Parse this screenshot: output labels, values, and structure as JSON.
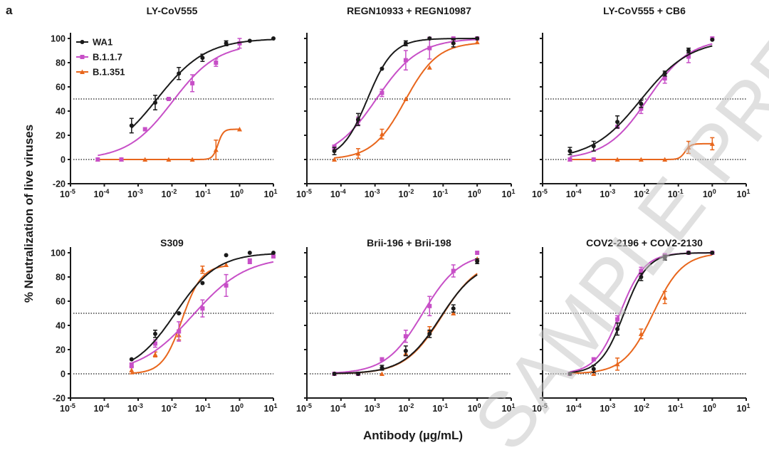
{
  "panel_label": "a",
  "y_axis_label": "% Neutralization of live viruses",
  "x_axis_label": "Antibody (µg/mL)",
  "watermark": "SAMPLE PREVIEW",
  "colors": {
    "WA1": "#1a1a1a",
    "B.1.1.7": "#c74fc7",
    "B.1.351": "#e8661c"
  },
  "chart_data": [
    {
      "type": "scatter",
      "title": "LY-CoV555",
      "xscale": "log",
      "xlim": [
        1e-05,
        10
      ],
      "ylim": [
        -20,
        100
      ],
      "x_tick_exponents": [
        -5,
        -4,
        -3,
        -2,
        -1,
        0,
        1
      ],
      "y_ticks": [
        -20,
        0,
        20,
        40,
        60,
        80,
        100
      ],
      "reference_lines": [
        0,
        50
      ],
      "legend": "top-left",
      "series": [
        {
          "name": "WA1",
          "marker": "circle",
          "x": [
            0.00064,
            0.0032,
            0.016,
            0.08,
            0.4,
            2,
            10
          ],
          "y": [
            28,
            47,
            71,
            84,
            96,
            98,
            100
          ],
          "err": [
            6,
            6,
            5,
            3,
            2,
            0,
            0
          ]
        },
        {
          "name": "B.1.1.7",
          "marker": "square",
          "x": [
            6.4e-05,
            0.00032,
            0.0016,
            0.008,
            0.04,
            0.2,
            1
          ],
          "y": [
            0,
            0,
            25,
            50,
            63,
            80,
            96
          ],
          "err": [
            0,
            0,
            0,
            0,
            7,
            3,
            4
          ]
        },
        {
          "name": "B.1.351",
          "marker": "triangle",
          "x": [
            6.4e-05,
            0.00032,
            0.0016,
            0.008,
            0.04,
            0.2,
            1
          ],
          "y": [
            0,
            0,
            0,
            0,
            0,
            8,
            25
          ],
          "err": [
            0,
            0,
            0,
            0,
            0,
            8,
            0
          ]
        }
      ]
    },
    {
      "type": "scatter",
      "title": "REGN10933 + REGN10987",
      "xscale": "log",
      "xlim": [
        1e-05,
        10
      ],
      "ylim": [
        -20,
        100
      ],
      "x_tick_exponents": [
        -5,
        -4,
        -3,
        -2,
        -1,
        0,
        1
      ],
      "y_ticks": [
        -20,
        0,
        20,
        40,
        60,
        80,
        100
      ],
      "reference_lines": [
        0,
        50
      ],
      "series": [
        {
          "name": "WA1",
          "marker": "circle",
          "x": [
            6.4e-05,
            0.00032,
            0.0016,
            0.008,
            0.04,
            0.2,
            1
          ],
          "y": [
            7,
            33,
            75,
            96,
            100,
            96,
            100
          ],
          "err": [
            3,
            5,
            0,
            2,
            0,
            3,
            0
          ]
        },
        {
          "name": "B.1.1.7",
          "marker": "square",
          "x": [
            6.4e-05,
            0.00032,
            0.0016,
            0.008,
            0.04,
            0.2,
            1
          ],
          "y": [
            10,
            32,
            55,
            82,
            92,
            100,
            100
          ],
          "err": [
            2,
            3,
            3,
            8,
            9,
            0,
            0
          ]
        },
        {
          "name": "B.1.351",
          "marker": "triangle",
          "x": [
            6.4e-05,
            0.00032,
            0.0016,
            0.008,
            0.04,
            0.2,
            1
          ],
          "y": [
            0,
            5,
            21,
            50,
            76,
            97,
            97
          ],
          "err": [
            0,
            4,
            4,
            0,
            0,
            0,
            0
          ]
        }
      ]
    },
    {
      "type": "scatter",
      "title": "LY-CoV555 + CB6",
      "xscale": "log",
      "xlim": [
        1e-05,
        10
      ],
      "ylim": [
        -20,
        100
      ],
      "x_tick_exponents": [
        -5,
        -4,
        -3,
        -2,
        -1,
        0,
        1
      ],
      "y_ticks": [
        -20,
        0,
        20,
        40,
        60,
        80,
        100
      ],
      "reference_lines": [
        0,
        50
      ],
      "series": [
        {
          "name": "WA1",
          "marker": "circle",
          "x": [
            6.4e-05,
            0.00032,
            0.0016,
            0.008,
            0.04,
            0.2,
            1
          ],
          "y": [
            7,
            11,
            31,
            46,
            71,
            90,
            99
          ],
          "err": [
            3,
            4,
            5,
            3,
            2,
            2,
            0
          ]
        },
        {
          "name": "B.1.1.7",
          "marker": "square",
          "x": [
            6.4e-05,
            0.00032,
            0.0016,
            0.008,
            0.04,
            0.2,
            1
          ],
          "y": [
            0,
            0,
            27,
            42,
            67,
            85,
            100
          ],
          "err": [
            0,
            0,
            0,
            4,
            4,
            5,
            0
          ]
        },
        {
          "name": "B.1.351",
          "marker": "triangle",
          "x": [
            6.4e-05,
            0.00032,
            0.0016,
            0.008,
            0.04,
            0.2,
            1
          ],
          "y": [
            0,
            0,
            0,
            0,
            0,
            10,
            13
          ],
          "err": [
            0,
            0,
            0,
            0,
            0,
            5,
            5
          ]
        }
      ]
    },
    {
      "type": "scatter",
      "title": "S309",
      "xscale": "log",
      "xlim": [
        1e-05,
        10
      ],
      "ylim": [
        -20,
        100
      ],
      "x_tick_exponents": [
        -5,
        -4,
        -3,
        -2,
        -1,
        0,
        1
      ],
      "y_ticks": [
        -20,
        0,
        20,
        40,
        60,
        80,
        100
      ],
      "reference_lines": [
        0,
        50
      ],
      "series": [
        {
          "name": "WA1",
          "marker": "circle",
          "x": [
            0.00064,
            0.0032,
            0.016,
            0.08,
            0.4,
            2,
            10
          ],
          "y": [
            12,
            33,
            50,
            75,
            98,
            100,
            100
          ],
          "err": [
            0,
            3,
            0,
            0,
            0,
            0,
            0
          ]
        },
        {
          "name": "B.1.1.7",
          "marker": "square",
          "x": [
            0.00064,
            0.0032,
            0.016,
            0.08,
            0.4,
            2,
            10
          ],
          "y": [
            7,
            25,
            35,
            54,
            73,
            93,
            97
          ],
          "err": [
            2,
            3,
            8,
            7,
            9,
            2,
            0
          ]
        },
        {
          "name": "B.1.351",
          "marker": "triangle",
          "x": [
            0.00064,
            0.0032,
            0.016,
            0.08,
            0.4
          ],
          "y": [
            3,
            16,
            32,
            86,
            90
          ],
          "err": [
            3,
            2,
            4,
            3,
            0
          ]
        }
      ]
    },
    {
      "type": "scatter",
      "title": "Brii-196 + Brii-198",
      "xscale": "log",
      "xlim": [
        1e-05,
        10
      ],
      "ylim": [
        -20,
        100
      ],
      "x_tick_exponents": [
        -5,
        -4,
        -3,
        -2,
        -1,
        0,
        1
      ],
      "y_ticks": [
        -20,
        0,
        20,
        40,
        60,
        80,
        100
      ],
      "reference_lines": [
        0,
        50
      ],
      "series": [
        {
          "name": "WA1",
          "marker": "circle",
          "x": [
            6.4e-05,
            0.00032,
            0.0016,
            0.008,
            0.04,
            0.2,
            1
          ],
          "y": [
            0,
            0,
            5,
            19,
            33,
            54,
            93
          ],
          "err": [
            0,
            0,
            2,
            4,
            3,
            3,
            2
          ]
        },
        {
          "name": "B.1.1.7",
          "marker": "square",
          "x": [
            6.4e-05,
            0.00032,
            0.0016,
            0.008,
            0.04,
            0.2,
            1
          ],
          "y": [
            0,
            0,
            12,
            31,
            56,
            85,
            100
          ],
          "err": [
            0,
            0,
            0,
            5,
            8,
            5,
            0
          ]
        },
        {
          "name": "B.1.351",
          "marker": "triangle",
          "x": [
            6.4e-05,
            0.00032,
            0.0016,
            0.008,
            0.04,
            0.2,
            1
          ],
          "y": [
            0,
            0,
            0,
            17,
            36,
            50,
            95
          ],
          "err": [
            0,
            0,
            0,
            2,
            3,
            0,
            0
          ]
        }
      ]
    },
    {
      "type": "scatter",
      "title": "COV2-2196 + COV2-2130",
      "xscale": "log",
      "xlim": [
        1e-05,
        10
      ],
      "ylim": [
        -20,
        100
      ],
      "x_tick_exponents": [
        -5,
        -4,
        -3,
        -2,
        -1,
        0,
        1
      ],
      "y_ticks": [
        -20,
        0,
        20,
        40,
        60,
        80,
        100
      ],
      "reference_lines": [
        0,
        50
      ],
      "series": [
        {
          "name": "WA1",
          "marker": "circle",
          "x": [
            6.4e-05,
            0.00032,
            0.0016,
            0.008,
            0.04,
            0.2,
            1
          ],
          "y": [
            0,
            4,
            37,
            80,
            96,
            100,
            100
          ],
          "err": [
            0,
            3,
            5,
            3,
            2,
            0,
            0
          ]
        },
        {
          "name": "B.1.1.7",
          "marker": "square",
          "x": [
            6.4e-05,
            0.00032,
            0.0016,
            0.008,
            0.04,
            0.2,
            1
          ],
          "y": [
            0,
            12,
            45,
            85,
            98,
            100,
            100
          ],
          "err": [
            0,
            0,
            3,
            3,
            0,
            0,
            0
          ]
        },
        {
          "name": "B.1.351",
          "marker": "triangle",
          "x": [
            6.4e-05,
            0.00032,
            0.0016,
            0.008,
            0.04,
            0.2,
            1
          ],
          "y": [
            0,
            0,
            8,
            33,
            63,
            100,
            100
          ],
          "err": [
            0,
            0,
            5,
            4,
            5,
            0,
            0
          ]
        }
      ]
    }
  ]
}
